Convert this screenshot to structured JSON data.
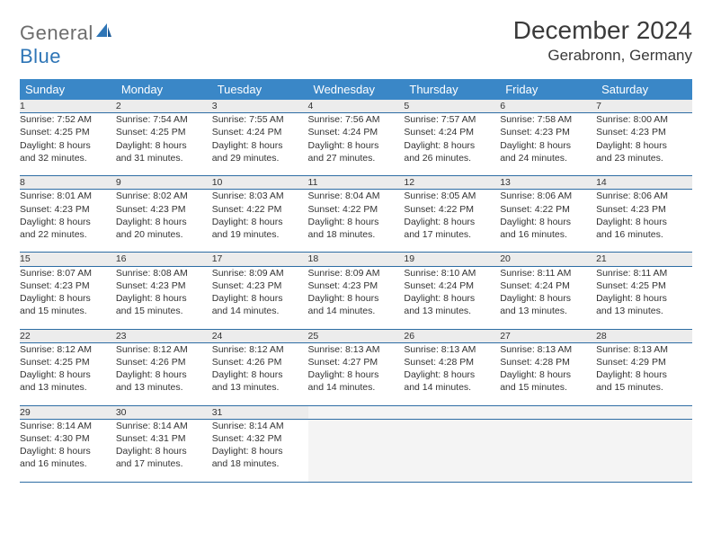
{
  "logo": {
    "general": "General",
    "blue": "Blue"
  },
  "title": "December 2024",
  "location": "Gerabronn, Germany",
  "colors": {
    "header_bg": "#3a87c7",
    "header_text": "#ffffff",
    "daynum_bg": "#ececec",
    "border": "#2e6da4",
    "logo_gray": "#6d6d6d",
    "logo_blue": "#2e75b6"
  },
  "weekdays": [
    "Sunday",
    "Monday",
    "Tuesday",
    "Wednesday",
    "Thursday",
    "Friday",
    "Saturday"
  ],
  "weeks": [
    {
      "nums": [
        "1",
        "2",
        "3",
        "4",
        "5",
        "6",
        "7"
      ],
      "cells": [
        {
          "sunrise": "Sunrise: 7:52 AM",
          "sunset": "Sunset: 4:25 PM",
          "day1": "Daylight: 8 hours",
          "day2": "and 32 minutes."
        },
        {
          "sunrise": "Sunrise: 7:54 AM",
          "sunset": "Sunset: 4:25 PM",
          "day1": "Daylight: 8 hours",
          "day2": "and 31 minutes."
        },
        {
          "sunrise": "Sunrise: 7:55 AM",
          "sunset": "Sunset: 4:24 PM",
          "day1": "Daylight: 8 hours",
          "day2": "and 29 minutes."
        },
        {
          "sunrise": "Sunrise: 7:56 AM",
          "sunset": "Sunset: 4:24 PM",
          "day1": "Daylight: 8 hours",
          "day2": "and 27 minutes."
        },
        {
          "sunrise": "Sunrise: 7:57 AM",
          "sunset": "Sunset: 4:24 PM",
          "day1": "Daylight: 8 hours",
          "day2": "and 26 minutes."
        },
        {
          "sunrise": "Sunrise: 7:58 AM",
          "sunset": "Sunset: 4:23 PM",
          "day1": "Daylight: 8 hours",
          "day2": "and 24 minutes."
        },
        {
          "sunrise": "Sunrise: 8:00 AM",
          "sunset": "Sunset: 4:23 PM",
          "day1": "Daylight: 8 hours",
          "day2": "and 23 minutes."
        }
      ]
    },
    {
      "nums": [
        "8",
        "9",
        "10",
        "11",
        "12",
        "13",
        "14"
      ],
      "cells": [
        {
          "sunrise": "Sunrise: 8:01 AM",
          "sunset": "Sunset: 4:23 PM",
          "day1": "Daylight: 8 hours",
          "day2": "and 22 minutes."
        },
        {
          "sunrise": "Sunrise: 8:02 AM",
          "sunset": "Sunset: 4:23 PM",
          "day1": "Daylight: 8 hours",
          "day2": "and 20 minutes."
        },
        {
          "sunrise": "Sunrise: 8:03 AM",
          "sunset": "Sunset: 4:22 PM",
          "day1": "Daylight: 8 hours",
          "day2": "and 19 minutes."
        },
        {
          "sunrise": "Sunrise: 8:04 AM",
          "sunset": "Sunset: 4:22 PM",
          "day1": "Daylight: 8 hours",
          "day2": "and 18 minutes."
        },
        {
          "sunrise": "Sunrise: 8:05 AM",
          "sunset": "Sunset: 4:22 PM",
          "day1": "Daylight: 8 hours",
          "day2": "and 17 minutes."
        },
        {
          "sunrise": "Sunrise: 8:06 AM",
          "sunset": "Sunset: 4:22 PM",
          "day1": "Daylight: 8 hours",
          "day2": "and 16 minutes."
        },
        {
          "sunrise": "Sunrise: 8:06 AM",
          "sunset": "Sunset: 4:23 PM",
          "day1": "Daylight: 8 hours",
          "day2": "and 16 minutes."
        }
      ]
    },
    {
      "nums": [
        "15",
        "16",
        "17",
        "18",
        "19",
        "20",
        "21"
      ],
      "cells": [
        {
          "sunrise": "Sunrise: 8:07 AM",
          "sunset": "Sunset: 4:23 PM",
          "day1": "Daylight: 8 hours",
          "day2": "and 15 minutes."
        },
        {
          "sunrise": "Sunrise: 8:08 AM",
          "sunset": "Sunset: 4:23 PM",
          "day1": "Daylight: 8 hours",
          "day2": "and 15 minutes."
        },
        {
          "sunrise": "Sunrise: 8:09 AM",
          "sunset": "Sunset: 4:23 PM",
          "day1": "Daylight: 8 hours",
          "day2": "and 14 minutes."
        },
        {
          "sunrise": "Sunrise: 8:09 AM",
          "sunset": "Sunset: 4:23 PM",
          "day1": "Daylight: 8 hours",
          "day2": "and 14 minutes."
        },
        {
          "sunrise": "Sunrise: 8:10 AM",
          "sunset": "Sunset: 4:24 PM",
          "day1": "Daylight: 8 hours",
          "day2": "and 13 minutes."
        },
        {
          "sunrise": "Sunrise: 8:11 AM",
          "sunset": "Sunset: 4:24 PM",
          "day1": "Daylight: 8 hours",
          "day2": "and 13 minutes."
        },
        {
          "sunrise": "Sunrise: 8:11 AM",
          "sunset": "Sunset: 4:25 PM",
          "day1": "Daylight: 8 hours",
          "day2": "and 13 minutes."
        }
      ]
    },
    {
      "nums": [
        "22",
        "23",
        "24",
        "25",
        "26",
        "27",
        "28"
      ],
      "cells": [
        {
          "sunrise": "Sunrise: 8:12 AM",
          "sunset": "Sunset: 4:25 PM",
          "day1": "Daylight: 8 hours",
          "day2": "and 13 minutes."
        },
        {
          "sunrise": "Sunrise: 8:12 AM",
          "sunset": "Sunset: 4:26 PM",
          "day1": "Daylight: 8 hours",
          "day2": "and 13 minutes."
        },
        {
          "sunrise": "Sunrise: 8:12 AM",
          "sunset": "Sunset: 4:26 PM",
          "day1": "Daylight: 8 hours",
          "day2": "and 13 minutes."
        },
        {
          "sunrise": "Sunrise: 8:13 AM",
          "sunset": "Sunset: 4:27 PM",
          "day1": "Daylight: 8 hours",
          "day2": "and 14 minutes."
        },
        {
          "sunrise": "Sunrise: 8:13 AM",
          "sunset": "Sunset: 4:28 PM",
          "day1": "Daylight: 8 hours",
          "day2": "and 14 minutes."
        },
        {
          "sunrise": "Sunrise: 8:13 AM",
          "sunset": "Sunset: 4:28 PM",
          "day1": "Daylight: 8 hours",
          "day2": "and 15 minutes."
        },
        {
          "sunrise": "Sunrise: 8:13 AM",
          "sunset": "Sunset: 4:29 PM",
          "day1": "Daylight: 8 hours",
          "day2": "and 15 minutes."
        }
      ]
    },
    {
      "nums": [
        "29",
        "30",
        "31",
        "",
        "",
        "",
        ""
      ],
      "cells": [
        {
          "sunrise": "Sunrise: 8:14 AM",
          "sunset": "Sunset: 4:30 PM",
          "day1": "Daylight: 8 hours",
          "day2": "and 16 minutes."
        },
        {
          "sunrise": "Sunrise: 8:14 AM",
          "sunset": "Sunset: 4:31 PM",
          "day1": "Daylight: 8 hours",
          "day2": "and 17 minutes."
        },
        {
          "sunrise": "Sunrise: 8:14 AM",
          "sunset": "Sunset: 4:32 PM",
          "day1": "Daylight: 8 hours",
          "day2": "and 18 minutes."
        },
        {
          "empty": true
        },
        {
          "empty": true
        },
        {
          "empty": true
        },
        {
          "empty": true
        }
      ]
    }
  ]
}
